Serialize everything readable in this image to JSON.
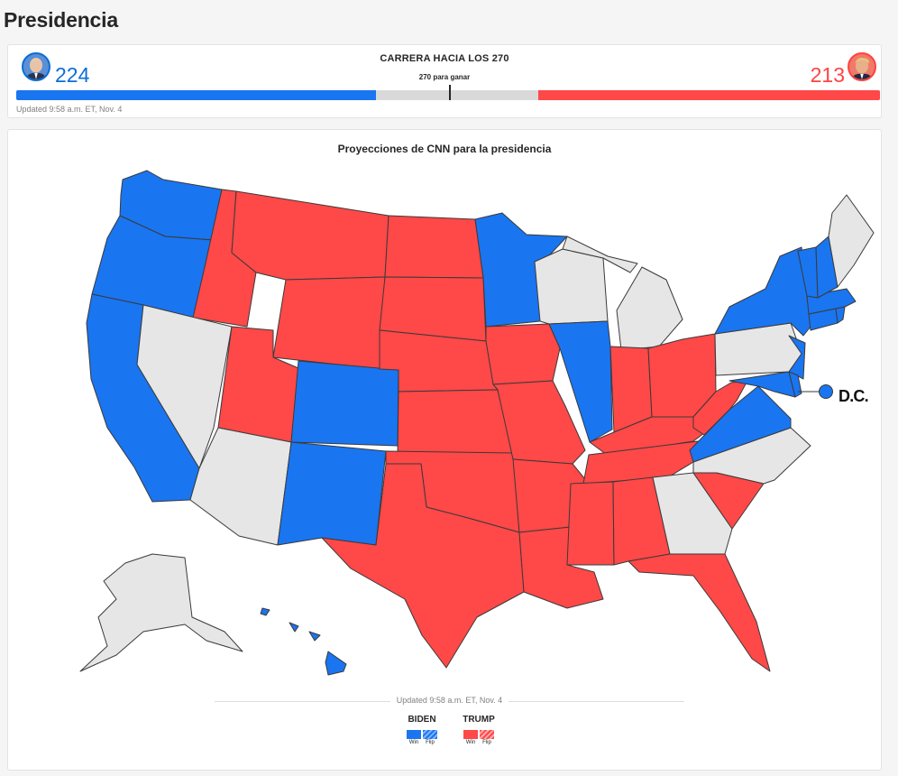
{
  "page": {
    "title": "Presidencia"
  },
  "race": {
    "title": "CARRERA HACIA LOS 270",
    "threshold_label": "270 para ganar",
    "updated": "Updated 9:58 a.m. ET, Nov. 4",
    "total_electoral_votes": 538,
    "needed_to_win": 270,
    "biden": {
      "electoral_votes": 224,
      "display": "224",
      "color": "#1a75f0"
    },
    "trump": {
      "electoral_votes": 213,
      "display": "213",
      "color": "#ff4848"
    }
  },
  "map": {
    "title": "Proyecciones de CNN para la presidencia",
    "dc_label": "D.C.",
    "updated": "Updated 9:58 a.m. ET, Nov. 4",
    "colors": {
      "biden": "#1a75f0",
      "trump": "#ff4848",
      "undecided": "#e6e6e6",
      "border": "#3a3a3a"
    },
    "states": {
      "biden": [
        "WA",
        "OR",
        "CA",
        "CO",
        "NM",
        "MN",
        "IL",
        "VA",
        "NY",
        "NJ",
        "VT",
        "NH",
        "MA",
        "CT",
        "RI",
        "DE",
        "MD",
        "HI",
        "DC"
      ],
      "trump": [
        "ID",
        "MT",
        "WY",
        "UT",
        "ND",
        "SD",
        "NE",
        "KS",
        "OK",
        "TX",
        "MO",
        "AR",
        "LA",
        "MS",
        "AL",
        "TN",
        "KY",
        "IN",
        "OH",
        "WV",
        "SC",
        "FL",
        "IA"
      ],
      "undecided": [
        "NV",
        "AZ",
        "WI",
        "MI",
        "PA",
        "NC",
        "GA",
        "AK",
        "ME"
      ]
    }
  },
  "legend": {
    "biden": {
      "name": "BIDEN",
      "win": "Win",
      "flip": "Flip"
    },
    "trump": {
      "name": "TRUMP",
      "win": "Win",
      "flip": "Flip"
    }
  }
}
